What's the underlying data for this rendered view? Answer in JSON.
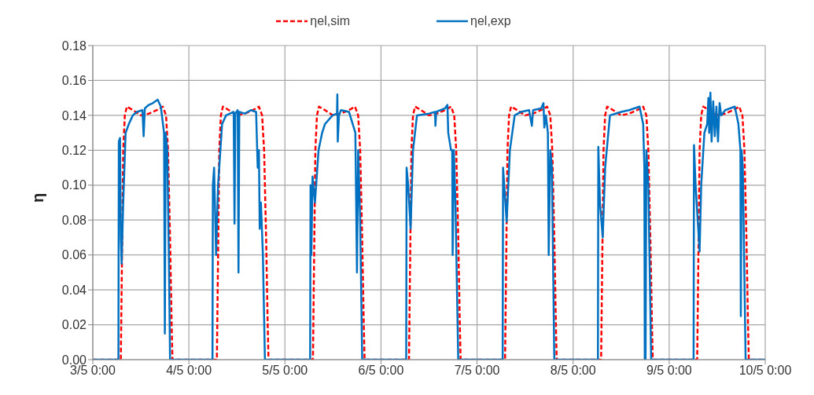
{
  "chart_data": {
    "type": "line",
    "ylabel": "η",
    "xlim": [
      "--05-03T00:00",
      "--05-10T00:00"
    ],
    "xticks": [
      {
        "value": "--05-03T00:00",
        "label": "3/5 0:00"
      },
      {
        "value": "--05-04T00:00",
        "label": "4/5 0:00"
      },
      {
        "value": "--05-05T00:00",
        "label": "5/5 0:00"
      },
      {
        "value": "--05-06T00:00",
        "label": "6/5 0:00"
      },
      {
        "value": "--05-07T00:00",
        "label": "7/5 0:00"
      },
      {
        "value": "--05-08T00:00",
        "label": "8/5 0:00"
      },
      {
        "value": "--05-09T00:00",
        "label": "9/5 0:00"
      },
      {
        "value": "--05-10T00:00",
        "label": "10/5 0:00"
      }
    ],
    "ylim": [
      0,
      0.18
    ],
    "yticks": [
      {
        "value": 0,
        "label": "0.00"
      },
      {
        "value": 0.02,
        "label": "0.02"
      },
      {
        "value": 0.04,
        "label": "0.04"
      },
      {
        "value": 0.06,
        "label": "0.06"
      },
      {
        "value": 0.08,
        "label": "0.08"
      },
      {
        "value": 0.1,
        "label": "0.10"
      },
      {
        "value": 0.12,
        "label": "0.12"
      },
      {
        "value": 0.14,
        "label": "0.14"
      },
      {
        "value": 0.16,
        "label": "0.16"
      },
      {
        "value": 0.18,
        "label": "0.18"
      }
    ],
    "grid": true,
    "legend": "top",
    "marker": "none",
    "series": [
      {
        "name": "ηel,sim",
        "color": "#ff0000",
        "line_style": "dashed",
        "x": [
          "--05-03T00:00",
          "--05-03T07:00",
          "--05-03T07:18",
          "--05-03T07:36",
          "--05-03T08:00",
          "--05-03T08:30",
          "--05-03T10:00",
          "--05-03T12:00",
          "--05-03T14:00",
          "--05-03T16:00",
          "--05-03T17:30",
          "--05-03T18:18",
          "--05-03T18:48",
          "--05-03T19:18",
          "--05-03T19:42",
          "--05-03T19:54",
          "--05-04T07:00",
          "--05-04T07:18",
          "--05-04T07:36",
          "--05-04T08:00",
          "--05-04T08:30",
          "--05-04T10:00",
          "--05-04T12:00",
          "--05-04T14:00",
          "--05-04T16:00",
          "--05-04T17:30",
          "--05-04T18:18",
          "--05-04T18:48",
          "--05-04T19:18",
          "--05-04T19:42",
          "--05-04T19:54",
          "--05-05T07:00",
          "--05-05T07:18",
          "--05-05T07:36",
          "--05-05T08:00",
          "--05-05T08:30",
          "--05-05T10:00",
          "--05-05T12:00",
          "--05-05T14:00",
          "--05-05T16:00",
          "--05-05T17:30",
          "--05-05T18:18",
          "--05-05T18:48",
          "--05-05T19:18",
          "--05-05T19:42",
          "--05-05T19:54",
          "--05-06T07:00",
          "--05-06T07:18",
          "--05-06T07:36",
          "--05-06T08:00",
          "--05-06T08:30",
          "--05-06T10:00",
          "--05-06T12:00",
          "--05-06T14:00",
          "--05-06T16:00",
          "--05-06T17:30",
          "--05-06T18:18",
          "--05-06T18:48",
          "--05-06T19:18",
          "--05-06T19:42",
          "--05-06T19:54",
          "--05-07T07:00",
          "--05-07T07:18",
          "--05-07T07:36",
          "--05-07T08:00",
          "--05-07T08:30",
          "--05-07T10:00",
          "--05-07T12:00",
          "--05-07T14:00",
          "--05-07T16:00",
          "--05-07T17:30",
          "--05-07T18:18",
          "--05-07T18:48",
          "--05-07T19:18",
          "--05-07T19:42",
          "--05-07T19:54",
          "--05-08T07:00",
          "--05-08T07:18",
          "--05-08T07:36",
          "--05-08T08:00",
          "--05-08T08:30",
          "--05-08T10:00",
          "--05-08T12:00",
          "--05-08T14:00",
          "--05-08T16:00",
          "--05-08T17:30",
          "--05-08T18:18",
          "--05-08T18:48",
          "--05-08T19:18",
          "--05-08T19:42",
          "--05-08T19:54",
          "--05-09T07:00",
          "--05-09T07:18",
          "--05-09T07:36",
          "--05-09T08:00",
          "--05-09T08:30",
          "--05-09T10:00",
          "--05-09T12:00",
          "--05-09T14:00",
          "--05-09T16:00",
          "--05-09T17:30",
          "--05-09T18:18",
          "--05-09T18:48",
          "--05-09T19:18",
          "--05-09T19:42",
          "--05-09T19:54",
          "--05-10T00:00"
        ],
        "values": [
          0,
          0,
          0.06,
          0.12,
          0.14,
          0.145,
          0.143,
          0.14,
          0.141,
          0.143,
          0.145,
          0.14,
          0.12,
          0.07,
          0.02,
          0,
          0,
          0.06,
          0.12,
          0.14,
          0.145,
          0.143,
          0.14,
          0.141,
          0.143,
          0.145,
          0.14,
          0.12,
          0.07,
          0.02,
          0,
          0,
          0.06,
          0.12,
          0.14,
          0.145,
          0.143,
          0.14,
          0.141,
          0.143,
          0.145,
          0.14,
          0.12,
          0.07,
          0.02,
          0,
          0,
          0.06,
          0.12,
          0.14,
          0.145,
          0.143,
          0.14,
          0.141,
          0.143,
          0.145,
          0.14,
          0.12,
          0.07,
          0.02,
          0,
          0,
          0.06,
          0.12,
          0.14,
          0.145,
          0.143,
          0.14,
          0.141,
          0.143,
          0.145,
          0.14,
          0.12,
          0.07,
          0.02,
          0,
          0,
          0.06,
          0.12,
          0.14,
          0.145,
          0.143,
          0.14,
          0.141,
          0.143,
          0.145,
          0.14,
          0.12,
          0.07,
          0.02,
          0,
          0,
          0.06,
          0.12,
          0.14,
          0.145,
          0.143,
          0.14,
          0.141,
          0.143,
          0.145,
          0.14,
          0.12,
          0.07,
          0.02,
          0,
          0
        ]
      },
      {
        "name": "ηel,exp",
        "color": "#0070c0",
        "line_style": "solid",
        "x": [
          "--05-03T00:00",
          "--05-03T06:24",
          "--05-03T06:30",
          "--05-03T06:48",
          "--05-03T07:00",
          "--05-03T07:12",
          "--05-03T07:36",
          "--05-03T08:12",
          "--05-03T09:00",
          "--05-03T10:00",
          "--05-03T11:00",
          "--05-03T12:24",
          "--05-03T12:42",
          "--05-03T13:00",
          "--05-03T14:00",
          "--05-03T15:00",
          "--05-03T16:12",
          "--05-03T17:00",
          "--05-03T17:48",
          "--05-03T18:00",
          "--05-03T18:12",
          "--05-03T18:36",
          "--05-03T19:00",
          "--05-03T19:18",
          "--05-04T05:54",
          "--05-04T06:00",
          "--05-04T06:18",
          "--05-04T06:48",
          "--05-04T07:18",
          "--05-04T08:18",
          "--05-04T09:18",
          "--05-04T11:12",
          "--05-04T11:24",
          "--05-04T11:36",
          "--05-04T12:12",
          "--05-04T12:24",
          "--05-04T12:36",
          "--05-04T14:00",
          "--05-04T15:30",
          "--05-04T16:48",
          "--05-04T17:12",
          "--05-04T17:30",
          "--05-04T17:42",
          "--05-04T18:00",
          "--05-04T18:30",
          "--05-04T19:00",
          "--05-05T06:18",
          "--05-05T06:24",
          "--05-05T06:36",
          "--05-05T06:54",
          "--05-05T07:30",
          "--05-05T08:24",
          "--05-05T09:18",
          "--05-05T10:00",
          "--05-05T11:54",
          "--05-05T13:00",
          "--05-05T13:06",
          "--05-05T13:12",
          "--05-05T13:30",
          "--05-05T14:00",
          "--05-05T16:00",
          "--05-05T17:36",
          "--05-05T18:00",
          "--05-05T18:18",
          "--05-05T18:48",
          "--05-05T19:18",
          "--05-06T06:18",
          "--05-06T06:24",
          "--05-06T06:48",
          "--05-06T07:24",
          "--05-06T08:00",
          "--05-06T09:00",
          "--05-06T12:00",
          "--05-06T13:30",
          "--05-06T13:36",
          "--05-06T13:48",
          "--05-06T16:00",
          "--05-06T16:36",
          "--05-06T16:48",
          "--05-06T17:30",
          "--05-06T17:48",
          "--05-06T17:54",
          "--05-06T18:12",
          "--05-06T18:36",
          "--05-06T19:18",
          "--05-07T06:24",
          "--05-07T06:30",
          "--05-07T07:24",
          "--05-07T08:12",
          "--05-07T09:24",
          "--05-07T11:00",
          "--05-07T13:00",
          "--05-07T13:42",
          "--05-07T14:00",
          "--05-07T16:00",
          "--05-07T16:36",
          "--05-07T16:48",
          "--05-07T17:12",
          "--05-07T17:42",
          "--05-07T17:54",
          "--05-07T18:18",
          "--05-07T18:42",
          "--05-07T19:18",
          "--05-08T06:12",
          "--05-08T06:18",
          "--05-08T06:42",
          "--05-08T07:24",
          "--05-08T08:00",
          "--05-08T09:12",
          "--05-08T12:00",
          "--05-08T14:00",
          "--05-08T16:36",
          "--05-08T17:30",
          "--05-08T17:48",
          "--05-08T17:54",
          "--05-08T18:06",
          "--05-08T18:18",
          "--05-08T18:48",
          "--05-08T19:30",
          "--05-09T06:06",
          "--05-09T06:12",
          "--05-09T06:36",
          "--05-09T07:36",
          "--05-09T08:00",
          "--05-09T08:48",
          "--05-09T09:30",
          "--05-09T09:48",
          "--05-09T10:00",
          "--05-09T10:18",
          "--05-09T10:36",
          "--05-09T11:00",
          "--05-09T11:24",
          "--05-09T11:48",
          "--05-09T12:12",
          "--05-09T12:36",
          "--05-09T13:00",
          "--05-09T14:00",
          "--05-09T16:24",
          "--05-09T17:18",
          "--05-09T17:48",
          "--05-09T17:54",
          "--05-09T18:06",
          "--05-09T18:24",
          "--05-09T19:06",
          "--05-10T00:00"
        ],
        "values": [
          0,
          0,
          0.125,
          0.127,
          0.07,
          0.055,
          0.09,
          0.13,
          0.135,
          0.14,
          0.142,
          0.143,
          0.128,
          0.144,
          0.146,
          0.147,
          0.149,
          0.145,
          0.13,
          0.015,
          0.13,
          0.12,
          0.06,
          0,
          0,
          0.1,
          0.11,
          0.06,
          0.1,
          0.135,
          0.14,
          0.142,
          0.078,
          0.141,
          0.143,
          0.05,
          0.142,
          0.141,
          0.143,
          0.142,
          0.11,
          0.12,
          0.075,
          0.09,
          0.06,
          0,
          0,
          0.1,
          0.06,
          0.105,
          0.09,
          0.12,
          0.13,
          0.135,
          0.14,
          0.141,
          0.152,
          0.125,
          0.14,
          0.143,
          0.142,
          0.13,
          0.05,
          0.12,
          0.08,
          0,
          0,
          0.11,
          0.1,
          0.075,
          0.12,
          0.14,
          0.141,
          0.142,
          0.134,
          0.142,
          0.144,
          0.146,
          0.13,
          0.12,
          0.12,
          0.06,
          0.12,
          0.09,
          0,
          0,
          0.11,
          0.079,
          0.12,
          0.14,
          0.142,
          0.143,
          0.134,
          0.143,
          0.144,
          0.147,
          0.133,
          0.14,
          0.13,
          0.06,
          0.12,
          0.11,
          0,
          0,
          0.122,
          0.09,
          0.07,
          0.11,
          0.14,
          0.142,
          0.143,
          0.145,
          0.135,
          0.11,
          0,
          0,
          0.12,
          0.1,
          0,
          0,
          0.123,
          0.1,
          0.062,
          0.1,
          0.13,
          0.135,
          0.15,
          0.13,
          0.153,
          0.125,
          0.148,
          0.128,
          0.145,
          0.125,
          0.147,
          0.14,
          0.143,
          0.145,
          0.135,
          0.12,
          0.025,
          0.12,
          0.11,
          0,
          0
        ]
      }
    ]
  }
}
